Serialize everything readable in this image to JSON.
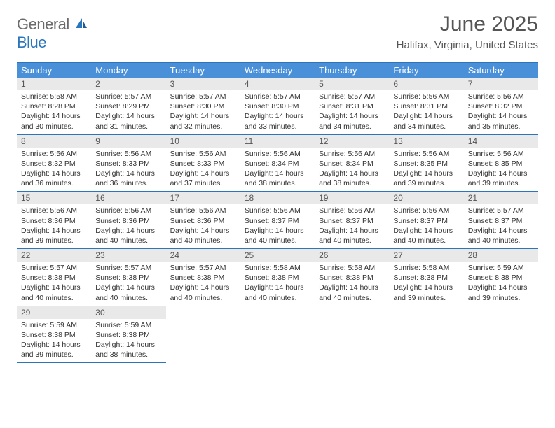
{
  "logo": {
    "general": "General",
    "blue": "Blue"
  },
  "header": {
    "title": "June 2025",
    "subtitle": "Halifax, Virginia, United States"
  },
  "weekdays": [
    "Sunday",
    "Monday",
    "Tuesday",
    "Wednesday",
    "Thursday",
    "Friday",
    "Saturday"
  ],
  "colors": {
    "brand_blue": "#2a75bb",
    "header_bg": "#4a90d9",
    "daynum_bg": "#e9e9e9",
    "text_gray": "#555"
  },
  "days": [
    {
      "num": "1",
      "sunrise": "Sunrise: 5:58 AM",
      "sunset": "Sunset: 8:28 PM",
      "daylight1": "Daylight: 14 hours",
      "daylight2": "and 30 minutes."
    },
    {
      "num": "2",
      "sunrise": "Sunrise: 5:57 AM",
      "sunset": "Sunset: 8:29 PM",
      "daylight1": "Daylight: 14 hours",
      "daylight2": "and 31 minutes."
    },
    {
      "num": "3",
      "sunrise": "Sunrise: 5:57 AM",
      "sunset": "Sunset: 8:30 PM",
      "daylight1": "Daylight: 14 hours",
      "daylight2": "and 32 minutes."
    },
    {
      "num": "4",
      "sunrise": "Sunrise: 5:57 AM",
      "sunset": "Sunset: 8:30 PM",
      "daylight1": "Daylight: 14 hours",
      "daylight2": "and 33 minutes."
    },
    {
      "num": "5",
      "sunrise": "Sunrise: 5:57 AM",
      "sunset": "Sunset: 8:31 PM",
      "daylight1": "Daylight: 14 hours",
      "daylight2": "and 34 minutes."
    },
    {
      "num": "6",
      "sunrise": "Sunrise: 5:56 AM",
      "sunset": "Sunset: 8:31 PM",
      "daylight1": "Daylight: 14 hours",
      "daylight2": "and 34 minutes."
    },
    {
      "num": "7",
      "sunrise": "Sunrise: 5:56 AM",
      "sunset": "Sunset: 8:32 PM",
      "daylight1": "Daylight: 14 hours",
      "daylight2": "and 35 minutes."
    },
    {
      "num": "8",
      "sunrise": "Sunrise: 5:56 AM",
      "sunset": "Sunset: 8:32 PM",
      "daylight1": "Daylight: 14 hours",
      "daylight2": "and 36 minutes."
    },
    {
      "num": "9",
      "sunrise": "Sunrise: 5:56 AM",
      "sunset": "Sunset: 8:33 PM",
      "daylight1": "Daylight: 14 hours",
      "daylight2": "and 36 minutes."
    },
    {
      "num": "10",
      "sunrise": "Sunrise: 5:56 AM",
      "sunset": "Sunset: 8:33 PM",
      "daylight1": "Daylight: 14 hours",
      "daylight2": "and 37 minutes."
    },
    {
      "num": "11",
      "sunrise": "Sunrise: 5:56 AM",
      "sunset": "Sunset: 8:34 PM",
      "daylight1": "Daylight: 14 hours",
      "daylight2": "and 38 minutes."
    },
    {
      "num": "12",
      "sunrise": "Sunrise: 5:56 AM",
      "sunset": "Sunset: 8:34 PM",
      "daylight1": "Daylight: 14 hours",
      "daylight2": "and 38 minutes."
    },
    {
      "num": "13",
      "sunrise": "Sunrise: 5:56 AM",
      "sunset": "Sunset: 8:35 PM",
      "daylight1": "Daylight: 14 hours",
      "daylight2": "and 39 minutes."
    },
    {
      "num": "14",
      "sunrise": "Sunrise: 5:56 AM",
      "sunset": "Sunset: 8:35 PM",
      "daylight1": "Daylight: 14 hours",
      "daylight2": "and 39 minutes."
    },
    {
      "num": "15",
      "sunrise": "Sunrise: 5:56 AM",
      "sunset": "Sunset: 8:36 PM",
      "daylight1": "Daylight: 14 hours",
      "daylight2": "and 39 minutes."
    },
    {
      "num": "16",
      "sunrise": "Sunrise: 5:56 AM",
      "sunset": "Sunset: 8:36 PM",
      "daylight1": "Daylight: 14 hours",
      "daylight2": "and 40 minutes."
    },
    {
      "num": "17",
      "sunrise": "Sunrise: 5:56 AM",
      "sunset": "Sunset: 8:36 PM",
      "daylight1": "Daylight: 14 hours",
      "daylight2": "and 40 minutes."
    },
    {
      "num": "18",
      "sunrise": "Sunrise: 5:56 AM",
      "sunset": "Sunset: 8:37 PM",
      "daylight1": "Daylight: 14 hours",
      "daylight2": "and 40 minutes."
    },
    {
      "num": "19",
      "sunrise": "Sunrise: 5:56 AM",
      "sunset": "Sunset: 8:37 PM",
      "daylight1": "Daylight: 14 hours",
      "daylight2": "and 40 minutes."
    },
    {
      "num": "20",
      "sunrise": "Sunrise: 5:56 AM",
      "sunset": "Sunset: 8:37 PM",
      "daylight1": "Daylight: 14 hours",
      "daylight2": "and 40 minutes."
    },
    {
      "num": "21",
      "sunrise": "Sunrise: 5:57 AM",
      "sunset": "Sunset: 8:37 PM",
      "daylight1": "Daylight: 14 hours",
      "daylight2": "and 40 minutes."
    },
    {
      "num": "22",
      "sunrise": "Sunrise: 5:57 AM",
      "sunset": "Sunset: 8:38 PM",
      "daylight1": "Daylight: 14 hours",
      "daylight2": "and 40 minutes."
    },
    {
      "num": "23",
      "sunrise": "Sunrise: 5:57 AM",
      "sunset": "Sunset: 8:38 PM",
      "daylight1": "Daylight: 14 hours",
      "daylight2": "and 40 minutes."
    },
    {
      "num": "24",
      "sunrise": "Sunrise: 5:57 AM",
      "sunset": "Sunset: 8:38 PM",
      "daylight1": "Daylight: 14 hours",
      "daylight2": "and 40 minutes."
    },
    {
      "num": "25",
      "sunrise": "Sunrise: 5:58 AM",
      "sunset": "Sunset: 8:38 PM",
      "daylight1": "Daylight: 14 hours",
      "daylight2": "and 40 minutes."
    },
    {
      "num": "26",
      "sunrise": "Sunrise: 5:58 AM",
      "sunset": "Sunset: 8:38 PM",
      "daylight1": "Daylight: 14 hours",
      "daylight2": "and 40 minutes."
    },
    {
      "num": "27",
      "sunrise": "Sunrise: 5:58 AM",
      "sunset": "Sunset: 8:38 PM",
      "daylight1": "Daylight: 14 hours",
      "daylight2": "and 39 minutes."
    },
    {
      "num": "28",
      "sunrise": "Sunrise: 5:59 AM",
      "sunset": "Sunset: 8:38 PM",
      "daylight1": "Daylight: 14 hours",
      "daylight2": "and 39 minutes."
    },
    {
      "num": "29",
      "sunrise": "Sunrise: 5:59 AM",
      "sunset": "Sunset: 8:38 PM",
      "daylight1": "Daylight: 14 hours",
      "daylight2": "and 39 minutes."
    },
    {
      "num": "30",
      "sunrise": "Sunrise: 5:59 AM",
      "sunset": "Sunset: 8:38 PM",
      "daylight1": "Daylight: 14 hours",
      "daylight2": "and 38 minutes."
    }
  ]
}
